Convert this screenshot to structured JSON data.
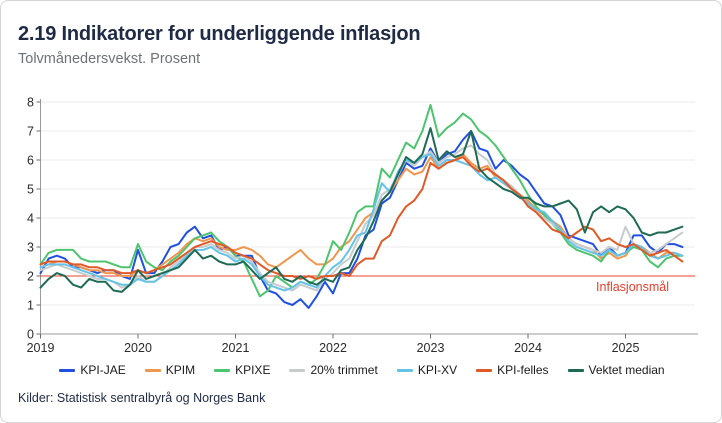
{
  "chart_data": {
    "type": "line",
    "title": "2.19 Indikatorer for underliggende inflasjon",
    "subtitle": "Tolvmånedersvekst. Prosent",
    "x_start": "2019-01",
    "x_step_months": 1,
    "x_tick_labels": [
      "2019",
      "2020",
      "2021",
      "2022",
      "2023",
      "2024",
      "2025"
    ],
    "ylim": [
      0,
      8
    ],
    "y_ticks": [
      0,
      1,
      2,
      3,
      4,
      5,
      6,
      7,
      8
    ],
    "grid": "horizontal",
    "legend_position": "bottom",
    "target_line": {
      "value": 2,
      "label": "Inflasjonsmål",
      "color": "#e8402d"
    },
    "series": [
      {
        "name": "KPI-JAE",
        "color": "#2050e0",
        "values": [
          2.1,
          2.6,
          2.7,
          2.6,
          2.3,
          2.3,
          2.2,
          2.1,
          2.2,
          2.2,
          2.0,
          1.9,
          2.9,
          2.1,
          2.1,
          2.5,
          3.0,
          3.1,
          3.5,
          3.7,
          3.3,
          3.4,
          2.9,
          3.0,
          2.7,
          2.7,
          2.7,
          2.0,
          1.5,
          1.4,
          1.1,
          1.0,
          1.2,
          0.9,
          1.3,
          1.8,
          1.4,
          2.1,
          2.1,
          2.6,
          3.4,
          3.6,
          4.5,
          4.7,
          5.3,
          5.9,
          5.7,
          5.8,
          6.4,
          5.9,
          6.2,
          6.3,
          6.7,
          7.0,
          6.4,
          6.3,
          5.7,
          6.0,
          5.8,
          5.5,
          5.3,
          4.9,
          4.5,
          4.4,
          4.1,
          3.4,
          3.3,
          3.2,
          3.1,
          2.7,
          3.0,
          2.7,
          2.8,
          3.4,
          3.4,
          3.0,
          2.8,
          3.1,
          3.1,
          3.0
        ]
      },
      {
        "name": "KPIM",
        "color": "#f0964e",
        "values": [
          2.3,
          2.4,
          2.5,
          2.5,
          2.4,
          2.3,
          2.2,
          2.2,
          2.1,
          2.1,
          2.0,
          2.0,
          2.2,
          2.1,
          2.2,
          2.4,
          2.6,
          2.8,
          3.1,
          3.3,
          3.2,
          3.3,
          3.0,
          2.9,
          2.9,
          3.0,
          2.9,
          2.7,
          2.4,
          2.3,
          2.5,
          2.7,
          2.9,
          2.6,
          2.4,
          2.4,
          2.6,
          3.0,
          3.2,
          3.6,
          4.0,
          4.2,
          4.6,
          4.9,
          5.3,
          5.7,
          5.5,
          5.6,
          6.1,
          5.7,
          5.9,
          6.0,
          6.2,
          5.9,
          5.7,
          5.8,
          5.4,
          5.2,
          5.0,
          4.8,
          4.6,
          4.3,
          4.1,
          3.9,
          3.7,
          3.3,
          3.1,
          3.0,
          2.9,
          2.6,
          2.8,
          2.6,
          2.7,
          3.1,
          3.0,
          2.8,
          2.6,
          2.8,
          2.8,
          2.7
        ]
      },
      {
        "name": "KPIXE",
        "color": "#4ec46e",
        "values": [
          2.4,
          2.8,
          2.9,
          2.9,
          2.9,
          2.6,
          2.5,
          2.5,
          2.5,
          2.4,
          2.3,
          2.3,
          3.1,
          2.5,
          2.3,
          2.2,
          2.5,
          2.7,
          3.0,
          3.3,
          3.4,
          3.5,
          3.2,
          3.0,
          2.7,
          2.5,
          1.9,
          1.3,
          1.5,
          2.0,
          1.8,
          1.6,
          1.8,
          1.7,
          1.9,
          2.4,
          3.2,
          2.9,
          3.5,
          4.2,
          4.4,
          4.4,
          5.7,
          5.4,
          6.0,
          6.6,
          6.4,
          7.0,
          7.9,
          6.8,
          7.1,
          7.3,
          7.6,
          7.4,
          7.0,
          6.8,
          6.5,
          6.1,
          5.7,
          5.3,
          4.8,
          4.4,
          4.1,
          3.8,
          3.5,
          3.1,
          2.9,
          2.8,
          2.7,
          2.5,
          2.9,
          2.7,
          2.8,
          3.0,
          2.9,
          2.5,
          2.3,
          2.6,
          2.7,
          2.7
        ]
      },
      {
        "name": "20% trimmet",
        "color": "#c7cbce",
        "values": [
          2.2,
          2.3,
          2.4,
          2.3,
          2.2,
          2.1,
          2.0,
          1.9,
          1.9,
          1.8,
          1.6,
          1.7,
          2.0,
          1.8,
          1.8,
          2.0,
          2.3,
          2.5,
          2.8,
          3.0,
          3.0,
          3.1,
          2.9,
          2.8,
          2.6,
          2.7,
          2.5,
          2.1,
          1.8,
          1.7,
          1.6,
          1.5,
          1.7,
          1.6,
          1.5,
          1.9,
          2.1,
          2.4,
          2.6,
          3.2,
          3.8,
          4.1,
          4.8,
          5.0,
          5.5,
          6.0,
          5.8,
          6.1,
          6.3,
          5.9,
          6.1,
          6.2,
          6.4,
          6.5,
          6.2,
          6.0,
          5.5,
          5.3,
          5.1,
          4.8,
          4.5,
          4.2,
          4.0,
          3.8,
          3.6,
          3.3,
          3.1,
          3.0,
          2.9,
          2.8,
          3.0,
          2.9,
          3.7,
          3.1,
          2.9,
          2.8,
          2.9,
          3.1,
          3.3,
          3.5
        ]
      },
      {
        "name": "KPI-XV",
        "color": "#66c3e8",
        "values": [
          2.3,
          2.4,
          2.4,
          2.4,
          2.3,
          2.2,
          2.1,
          2.0,
          1.9,
          1.8,
          1.7,
          1.7,
          1.9,
          1.8,
          1.8,
          2.0,
          2.2,
          2.4,
          2.7,
          2.9,
          2.9,
          3.0,
          2.8,
          2.7,
          2.5,
          2.6,
          2.4,
          2.0,
          1.7,
          1.6,
          1.5,
          1.6,
          1.8,
          1.7,
          1.6,
          2.0,
          2.3,
          2.5,
          2.9,
          3.4,
          3.5,
          4.3,
          5.2,
          4.9,
          5.6,
          6.0,
          5.9,
          6.1,
          6.2,
          5.8,
          6.0,
          6.0,
          5.9,
          5.8,
          5.5,
          5.3,
          5.4,
          5.2,
          5.0,
          4.7,
          4.5,
          4.3,
          4.2,
          3.9,
          3.6,
          3.2,
          3.0,
          2.9,
          2.8,
          2.7,
          2.9,
          2.7,
          2.8,
          3.1,
          3.0,
          2.7,
          2.6,
          2.7,
          2.8,
          2.7
        ]
      },
      {
        "name": "KPI-felles",
        "color": "#e05a28",
        "values": [
          2.4,
          2.5,
          2.5,
          2.5,
          2.4,
          2.4,
          2.3,
          2.3,
          2.2,
          2.2,
          2.1,
          2.1,
          2.2,
          2.1,
          2.2,
          2.3,
          2.4,
          2.6,
          2.8,
          3.0,
          3.1,
          3.2,
          3.1,
          3.0,
          2.8,
          2.7,
          2.6,
          2.4,
          2.2,
          2.1,
          2.0,
          2.0,
          1.9,
          2.0,
          1.9,
          2.0,
          2.0,
          2.1,
          2.0,
          2.4,
          2.6,
          2.6,
          3.2,
          3.4,
          4.0,
          4.4,
          4.6,
          5.0,
          5.9,
          5.7,
          5.9,
          6.0,
          6.1,
          5.8,
          5.6,
          5.7,
          5.5,
          5.3,
          5.0,
          4.8,
          4.4,
          4.2,
          3.9,
          3.6,
          3.5,
          3.3,
          3.5,
          3.7,
          3.6,
          3.2,
          3.3,
          3.1,
          3.0,
          3.1,
          2.9,
          2.7,
          2.8,
          2.9,
          2.7,
          2.5
        ]
      },
      {
        "name": "Vektet median",
        "color": "#1e6a56",
        "values": [
          1.6,
          1.9,
          2.1,
          2.0,
          1.7,
          1.6,
          1.9,
          1.8,
          1.8,
          1.5,
          1.45,
          1.7,
          2.2,
          1.9,
          2.0,
          2.1,
          2.2,
          2.3,
          2.6,
          2.9,
          2.6,
          2.7,
          2.5,
          2.4,
          2.4,
          2.5,
          2.2,
          1.9,
          2.1,
          2.3,
          1.9,
          1.8,
          2.0,
          1.8,
          1.7,
          1.9,
          1.8,
          2.2,
          2.3,
          2.9,
          3.3,
          3.9,
          4.6,
          4.9,
          5.5,
          6.1,
          5.9,
          6.2,
          7.1,
          6.0,
          6.3,
          6.1,
          6.2,
          7.0,
          5.7,
          5.4,
          5.2,
          5.0,
          4.9,
          4.7,
          4.7,
          4.5,
          4.4,
          4.4,
          4.5,
          4.6,
          4.3,
          3.5,
          4.2,
          4.4,
          4.2,
          4.4,
          4.3,
          4.0,
          3.5,
          3.4,
          3.5,
          3.5,
          3.6,
          3.7
        ]
      }
    ]
  },
  "footer": {
    "source": "Kilder: Statistisk sentralbyrå og Norges Bank"
  }
}
